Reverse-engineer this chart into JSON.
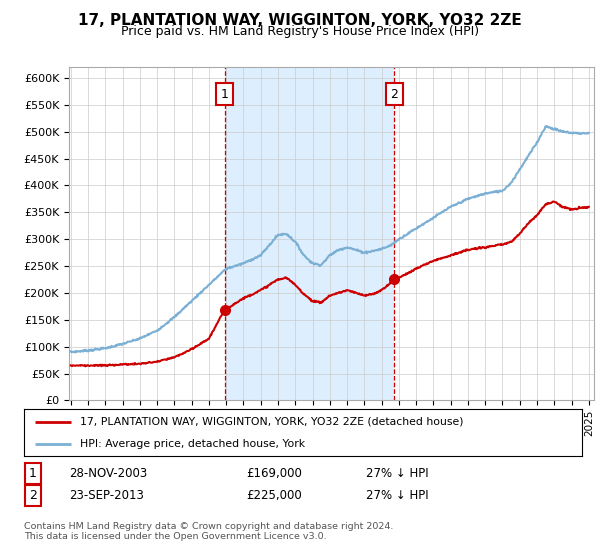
{
  "title": "17, PLANTATION WAY, WIGGINTON, YORK, YO32 2ZE",
  "subtitle": "Price paid vs. HM Land Registry's House Price Index (HPI)",
  "ylabel_ticks": [
    "£0",
    "£50K",
    "£100K",
    "£150K",
    "£200K",
    "£250K",
    "£300K",
    "£350K",
    "£400K",
    "£450K",
    "£500K",
    "£550K",
    "£600K"
  ],
  "ytick_values": [
    0,
    50000,
    100000,
    150000,
    200000,
    250000,
    300000,
    350000,
    400000,
    450000,
    500000,
    550000,
    600000
  ],
  "ylim": [
    0,
    620000
  ],
  "hpi_color": "#7bafd4",
  "price_color": "#cc0000",
  "shade_color": "#ddeeff",
  "marker1_date": 2003.92,
  "marker1_price": 169000,
  "marker2_date": 2013.73,
  "marker2_price": 225000,
  "legend_line1": "17, PLANTATION WAY, WIGGINTON, YORK, YO32 2ZE (detached house)",
  "legend_line2": "HPI: Average price, detached house, York",
  "footer": "Contains HM Land Registry data © Crown copyright and database right 2024.\nThis data is licensed under the Open Government Licence v3.0.",
  "background_color": "#ffffff",
  "grid_color": "#cccccc"
}
